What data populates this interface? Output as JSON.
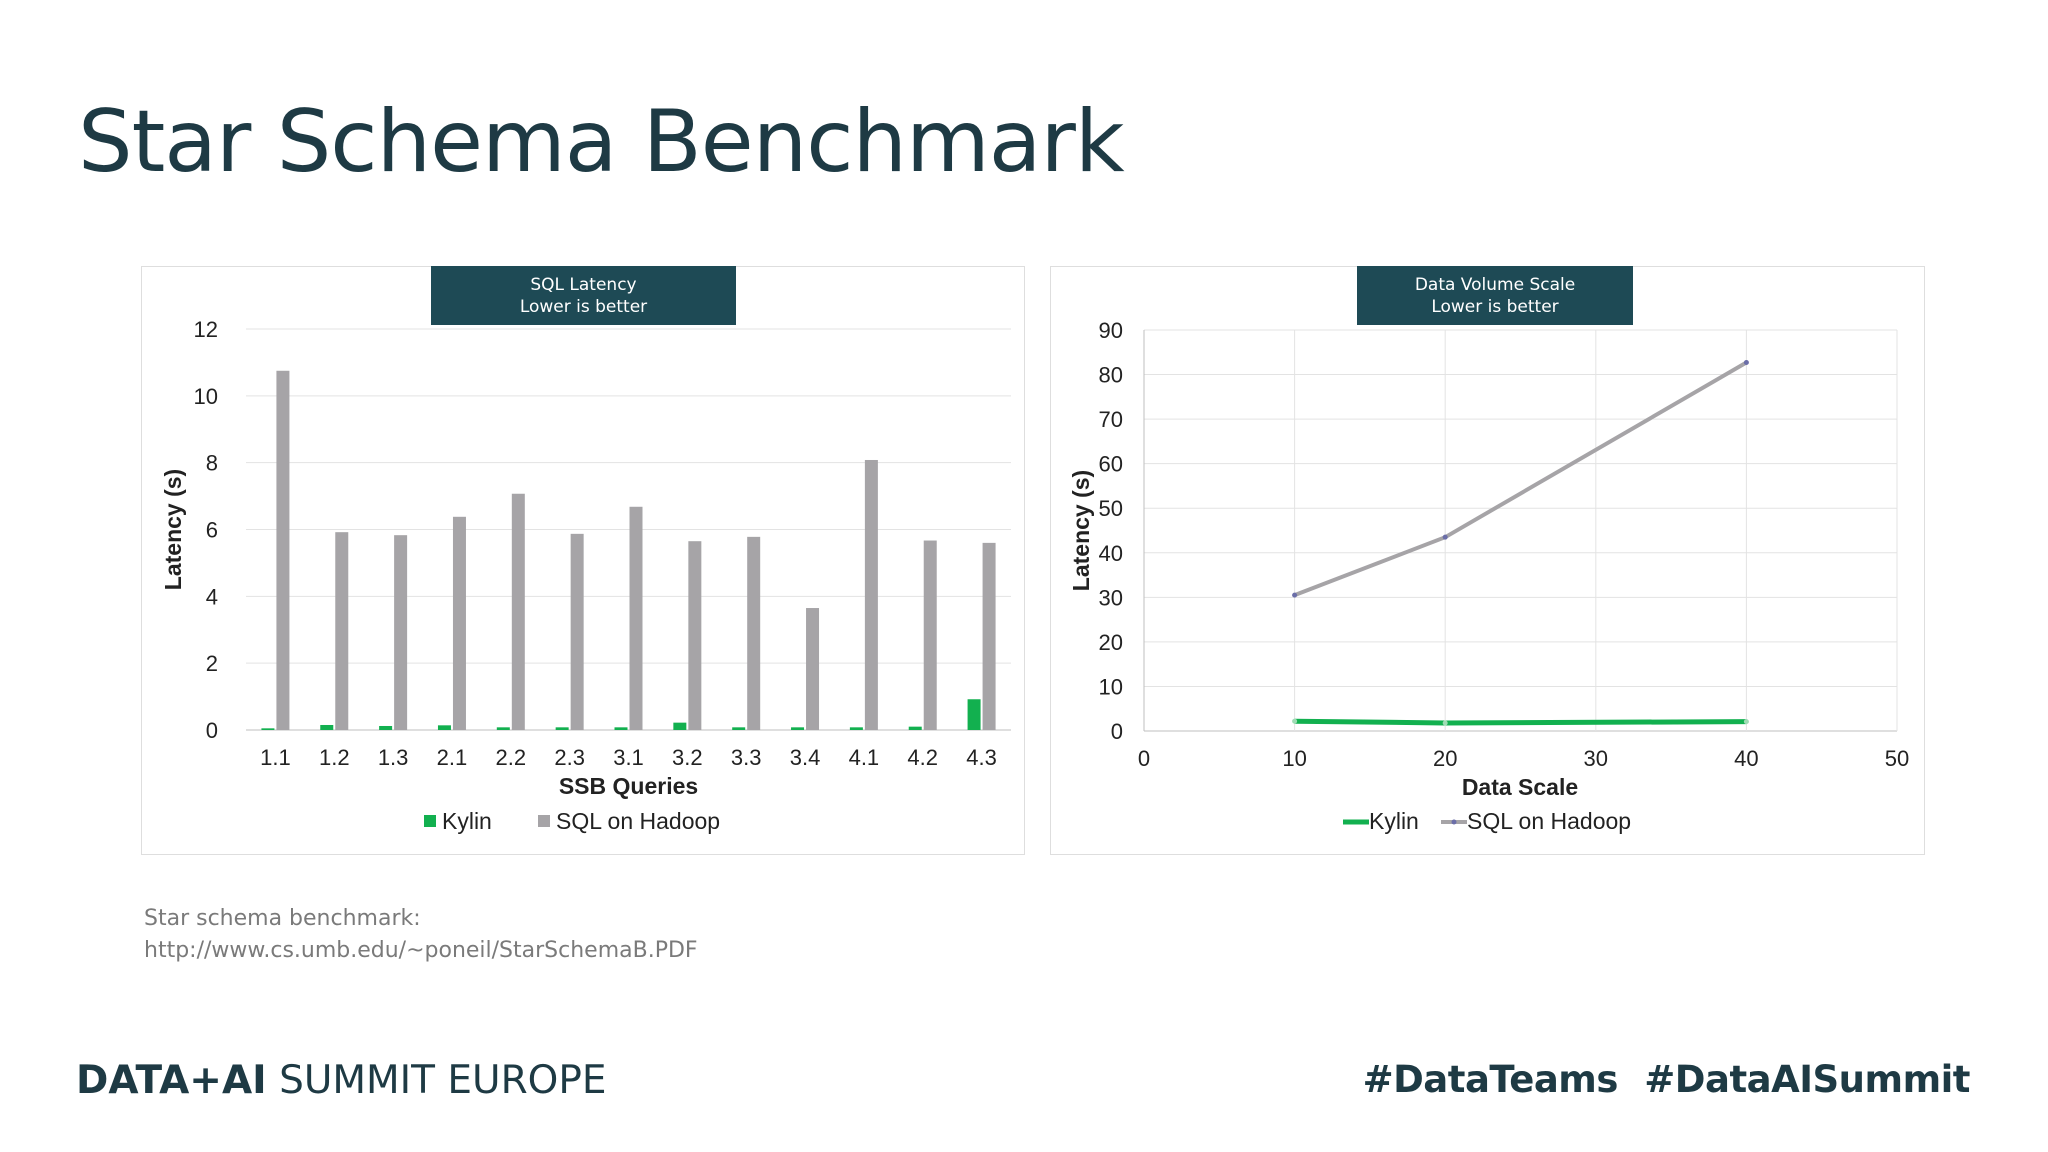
{
  "slide": {
    "title": "Star Schema Benchmark",
    "reference_line1": "Star schema benchmark:",
    "reference_line2": "http://www.cs.umb.edu/~poneil/StarSchemaB.PDF",
    "footer_brand_bold": "DATA+AI",
    "footer_brand_rest": " SUMMIT EUROPE",
    "hashtags": [
      "#DataTeams",
      "#DataAISummit"
    ]
  },
  "chart_data": [
    {
      "type": "bar",
      "label_line1": "SQL Latency",
      "label_line2": "Lower is better",
      "xlabel": "SSB Queries",
      "ylabel": "Latency (s)",
      "ylim": [
        0,
        12
      ],
      "yticks": [
        0,
        2,
        4,
        6,
        8,
        10,
        12
      ],
      "grid": true,
      "legend_position": "bottom",
      "categories": [
        "1.1",
        "1.2",
        "1.3",
        "2.1",
        "2.2",
        "2.3",
        "3.1",
        "3.2",
        "3.3",
        "3.4",
        "4.1",
        "4.2",
        "4.3"
      ],
      "series": [
        {
          "name": "Kylin",
          "color": "#12b04f",
          "values": [
            0.05,
            0.15,
            0.12,
            0.14,
            0.08,
            0.08,
            0.08,
            0.22,
            0.08,
            0.08,
            0.08,
            0.1,
            0.92
          ]
        },
        {
          "name": "SQL on Hadoop",
          "color": "#a6a4a7",
          "values": [
            10.75,
            5.92,
            5.83,
            6.38,
            7.07,
            5.87,
            6.68,
            5.65,
            5.78,
            3.65,
            8.08,
            5.67,
            5.6
          ]
        }
      ]
    },
    {
      "type": "line",
      "label_line1": "Data Volume Scale",
      "label_line2": "Lower is better",
      "xlabel": "Data Scale",
      "ylabel": "Latency (s)",
      "xlim": [
        0,
        50
      ],
      "ylim": [
        0,
        90
      ],
      "xticks": [
        0,
        10,
        20,
        30,
        40,
        50
      ],
      "yticks": [
        0,
        10,
        20,
        30,
        40,
        50,
        60,
        70,
        80,
        90
      ],
      "grid": true,
      "legend_position": "bottom",
      "x": [
        10,
        20,
        40
      ],
      "series": [
        {
          "name": "Kylin",
          "color": "#12b04f",
          "values": [
            2.2,
            1.8,
            2.1
          ]
        },
        {
          "name": "SQL on Hadoop",
          "color": "#a6a4a7",
          "values": [
            30.5,
            43.5,
            82.7
          ]
        }
      ]
    }
  ]
}
